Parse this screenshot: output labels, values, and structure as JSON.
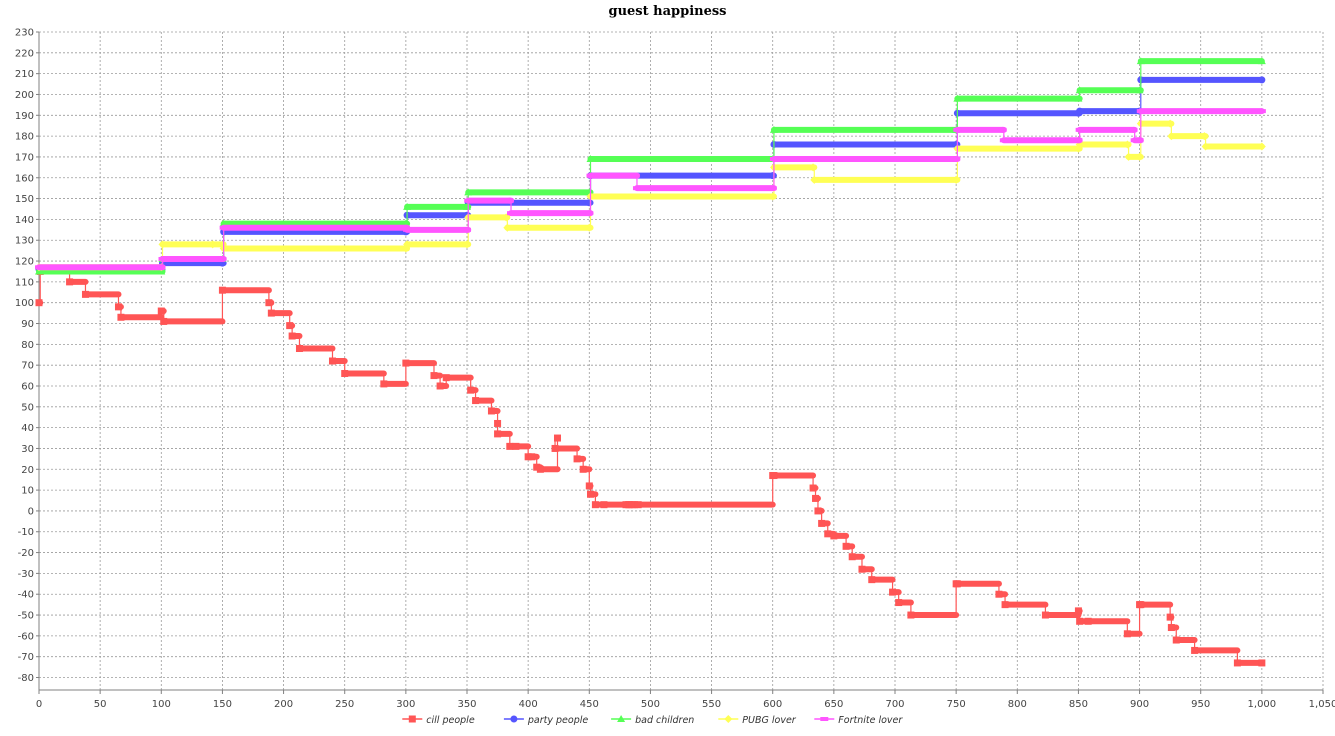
{
  "chart_data": {
    "type": "line",
    "title": "guest happiness",
    "xlabel": "",
    "ylabel": "",
    "xlim": [
      0,
      1050
    ],
    "ylim": [
      -86,
      230
    ],
    "x_ticks": [
      0,
      50,
      100,
      150,
      200,
      250,
      300,
      350,
      400,
      450,
      500,
      550,
      600,
      650,
      700,
      750,
      800,
      850,
      900,
      950,
      1000,
      1050
    ],
    "x_tick_labels": [
      "0",
      "50",
      "100",
      "150",
      "200",
      "250",
      "300",
      "350",
      "400",
      "450",
      "500",
      "550",
      "600",
      "650",
      "700",
      "750",
      "800",
      "850",
      "900",
      "950",
      "1,000",
      "1,050"
    ],
    "y_ticks": [
      230,
      220,
      210,
      200,
      190,
      180,
      170,
      160,
      150,
      140,
      130,
      120,
      110,
      100,
      90,
      80,
      70,
      60,
      50,
      40,
      30,
      20,
      10,
      0,
      -10,
      -20,
      -30,
      -40,
      -50,
      -60,
      -70,
      -80
    ],
    "grid": true,
    "legend_position": "bottom",
    "series": [
      {
        "name": "cill people",
        "color": "#ff5555",
        "marker": "square",
        "x": [
          0,
          1,
          25,
          38,
          65,
          67,
          100,
          102,
          150,
          188,
          190,
          205,
          207,
          213,
          240,
          250,
          282,
          300,
          323,
          328,
          333,
          353,
          357,
          370,
          375,
          375,
          385,
          390,
          400,
          403,
          407,
          410,
          424,
          422,
          440,
          445,
          450,
          451,
          455,
          462,
          480,
          482,
          483,
          485,
          487,
          490,
          600,
          601,
          633,
          635,
          637,
          640,
          645,
          650,
          660,
          665,
          673,
          681,
          698,
          703,
          713,
          750,
          751,
          785,
          790,
          823,
          850,
          851,
          858,
          890,
          900,
          901,
          925,
          926,
          930,
          945,
          980,
          1000
        ],
        "y": [
          100,
          115,
          110,
          104,
          98,
          93,
          96,
          91,
          106,
          100,
          95,
          89,
          84,
          78,
          72,
          66,
          61,
          71,
          65,
          60,
          64,
          58,
          53,
          48,
          42,
          37,
          31,
          31,
          26,
          26,
          21,
          20,
          35,
          30,
          25,
          20,
          12,
          8,
          3,
          3,
          3,
          3,
          3,
          3,
          3,
          3,
          17,
          17,
          11,
          6,
          0,
          -6,
          -11,
          -12,
          -17,
          -22,
          -28,
          -33,
          -39,
          -44,
          -50,
          -35,
          -35,
          -40,
          -45,
          -50,
          -48,
          -53,
          -53,
          -59,
          -45,
          -45,
          -51,
          -56,
          -62,
          -67,
          -73,
          -73
        ],
        "steps": true
      },
      {
        "name": "party people",
        "color": "#5555ff",
        "marker": "circle",
        "x": [
          0,
          100,
          101,
          150,
          151,
          300,
          301,
          350,
          351,
          450,
          451,
          600,
          601,
          750,
          751,
          850,
          851,
          900,
          901,
          1000
        ],
        "y": [
          116,
          116,
          119,
          119,
          134,
          134,
          142,
          142,
          148,
          148,
          161,
          161,
          176,
          176,
          191,
          191,
          192,
          192,
          207,
          207
        ],
        "steps": true
      },
      {
        "name": "bad children",
        "color": "#55ff55",
        "marker": "triangle",
        "x": [
          0,
          100,
          101,
          150,
          151,
          300,
          301,
          350,
          351,
          450,
          451,
          600,
          601,
          750,
          751,
          850,
          851,
          900,
          901,
          1000
        ],
        "y": [
          115,
          115,
          121,
          121,
          138,
          138,
          146,
          146,
          153,
          153,
          169,
          169,
          183,
          183,
          198,
          198,
          202,
          202,
          216,
          216
        ],
        "steps": true
      },
      {
        "name": "PUBG lover",
        "color": "#ffff55",
        "marker": "diamond",
        "x": [
          0,
          100,
          101,
          142,
          151,
          300,
          301,
          350,
          351,
          382,
          383,
          450,
          451,
          600,
          601,
          633,
          634,
          750,
          751,
          850,
          851,
          890,
          891,
          900,
          901,
          925,
          926,
          953,
          954,
          1000
        ],
        "y": [
          117,
          117,
          128,
          128,
          126,
          126,
          128,
          128,
          141,
          141,
          136,
          136,
          151,
          151,
          165,
          165,
          159,
          159,
          174,
          174,
          176,
          176,
          170,
          170,
          186,
          186,
          180,
          180,
          175,
          175
        ],
        "steps": true
      },
      {
        "name": "Fortnite lover",
        "color": "#ff55ff",
        "marker": "rect",
        "x": [
          0,
          100,
          101,
          150,
          151,
          300,
          301,
          350,
          351,
          385,
          386,
          450,
          451,
          488,
          489,
          600,
          601,
          750,
          751,
          788,
          789,
          850,
          851,
          895,
          896,
          900,
          901,
          1000
        ],
        "y": [
          117,
          117,
          121,
          121,
          136,
          136,
          135,
          135,
          149,
          149,
          143,
          143,
          161,
          161,
          155,
          155,
          169,
          169,
          183,
          183,
          178,
          178,
          183,
          183,
          178,
          178,
          192,
          192
        ],
        "steps": true
      }
    ]
  }
}
